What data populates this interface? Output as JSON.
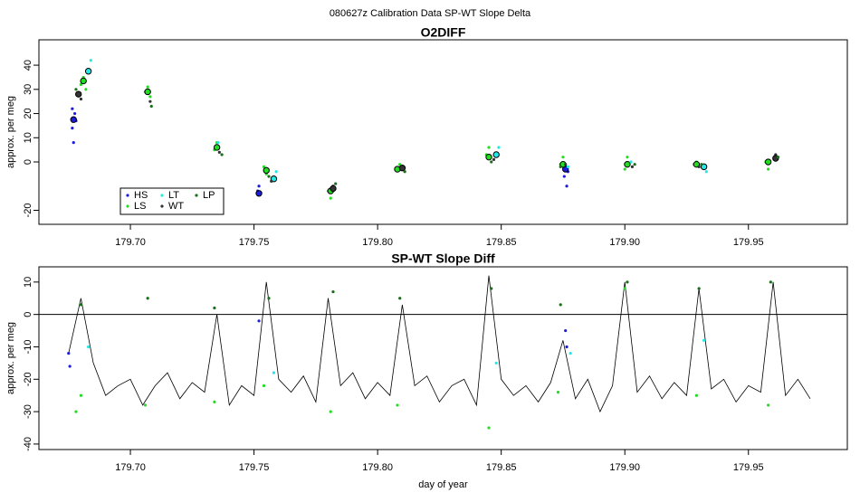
{
  "title": "080627z   Calibration Data SP-WT Slope Delta",
  "chart_data": [
    {
      "type": "scatter",
      "title": "O2DIFF",
      "ylabel": "approx. per meg",
      "xlim": [
        179.663,
        179.99
      ],
      "ylim": [
        -25.8,
        50.5
      ],
      "xticks": [
        {
          "value": 179.7,
          "label": "179.70"
        },
        179.75,
        {
          "value": 179.8,
          "label": "179.80"
        },
        179.85,
        {
          "value": 179.9,
          "label": "179.90"
        },
        179.95
      ],
      "yticks": [
        -20,
        0,
        10,
        20,
        30,
        40
      ],
      "legend": "bottomleft",
      "series": [
        {
          "name": "HS",
          "color": "#1c1cdc",
          "x": [
            179.6765,
            179.677,
            179.6775,
            179.678,
            179.6765,
            179.677,
            179.7515,
            179.752,
            179.8755,
            179.876,
            179.8765,
            179.877
          ],
          "values": [
            14,
            18,
            20,
            17,
            22,
            8,
            -12,
            -10,
            -6,
            -2,
            -10,
            -4
          ],
          "mean_x": [
            179.677,
            179.752,
            179.876
          ],
          "mean_values": [
            17.5,
            -13,
            -3
          ]
        },
        {
          "name": "LS",
          "color": "#22dd22",
          "x": [
            179.68,
            179.681,
            179.682,
            179.706,
            179.707,
            179.708,
            179.734,
            179.735,
            179.754,
            179.755,
            179.78,
            179.781,
            179.808,
            179.809,
            179.844,
            179.845,
            179.874,
            179.875,
            179.9,
            179.901,
            179.928,
            179.929,
            179.957,
            179.958
          ],
          "values": [
            32,
            35,
            30,
            29,
            31,
            27,
            5,
            8,
            -2,
            -5,
            -12,
            -15,
            -3,
            -1,
            3,
            6,
            -1,
            2,
            -3,
            2,
            -1,
            0,
            0,
            -3
          ],
          "mean_x": [
            179.681,
            179.707,
            179.735,
            179.755,
            179.781,
            179.808,
            179.845,
            179.875,
            179.901,
            179.929,
            179.958
          ],
          "mean_values": [
            33.5,
            29,
            6,
            -3.5,
            -12,
            -3,
            2,
            -1,
            -1,
            -1,
            0
          ]
        },
        {
          "name": "LT",
          "color": "#22e8e8",
          "x": [
            179.683,
            179.684,
            179.7355,
            179.758,
            179.759,
            179.8095,
            179.848,
            179.849,
            179.877,
            179.9025,
            179.932,
            179.933
          ],
          "values": [
            38,
            42,
            8,
            -7,
            -4,
            -2,
            3,
            6,
            -2,
            0,
            -2,
            -4
          ],
          "mean_x": [
            179.683,
            179.758,
            179.848,
            179.932
          ],
          "mean_values": [
            37.5,
            -7,
            3,
            -2
          ]
        },
        {
          "name": "WT",
          "color": "#333333",
          "x": [
            179.679,
            179.68,
            179.708,
            179.736,
            179.757,
            179.782,
            179.81,
            179.847,
            179.876,
            179.903,
            179.93,
            179.961
          ],
          "values": [
            28,
            26,
            25,
            4,
            -8,
            -10,
            -2,
            1,
            -1,
            -2,
            -2,
            3
          ],
          "mean_x": [
            179.679,
            179.782,
            179.81,
            179.961
          ],
          "mean_values": [
            28,
            -11,
            -2.5,
            1.5
          ]
        },
        {
          "name": "LP",
          "color": "#1a6e1a",
          "x": [
            179.678,
            179.7085,
            179.737,
            179.756,
            179.783,
            179.811,
            179.846,
            179.874,
            179.904,
            179.931,
            179.962
          ],
          "values": [
            30,
            23,
            3,
            -6,
            -9,
            -4,
            0,
            -2,
            -1,
            -1,
            2
          ]
        }
      ]
    },
    {
      "type": "line",
      "title": "SP-WT Slope Diff",
      "ylabel": "approx. per meg",
      "xlabel": "day of year",
      "xlim": [
        179.663,
        179.99
      ],
      "ylim": [
        -41.7,
        14.7
      ],
      "xticks": [
        {
          "value": 179.7,
          "label": "179.70"
        },
        179.75,
        {
          "value": 179.8,
          "label": "179.80"
        },
        179.85,
        {
          "value": 179.9,
          "label": "179.90"
        },
        179.95
      ],
      "yticks": [
        -40,
        -30,
        -20,
        -10,
        0,
        10
      ],
      "hline": 0,
      "series": [
        {
          "color": "#000000",
          "style": "line",
          "x": [
            179.675,
            179.68,
            179.685,
            179.69,
            179.695,
            179.7,
            179.705,
            179.71,
            179.715,
            179.72,
            179.725,
            179.73,
            179.735,
            179.74,
            179.745,
            179.75,
            179.755,
            179.76,
            179.765,
            179.77,
            179.775,
            179.78,
            179.785,
            179.79,
            179.795,
            179.8,
            179.805,
            179.81,
            179.815,
            179.82,
            179.825,
            179.83,
            179.835,
            179.84,
            179.845,
            179.85,
            179.855,
            179.86,
            179.865,
            179.87,
            179.875,
            179.88,
            179.885,
            179.89,
            179.895,
            179.9,
            179.905,
            179.91,
            179.915,
            179.92,
            179.925,
            179.93,
            179.935,
            179.94,
            179.945,
            179.95,
            179.955,
            179.96,
            179.965,
            179.97,
            179.975
          ],
          "values": [
            -12,
            5,
            -15,
            -25,
            -22,
            -20,
            -28,
            -22,
            -18,
            -26,
            -21,
            -24,
            0,
            -28,
            -22,
            -25,
            10,
            -20,
            -24,
            -19,
            -27,
            5,
            -22,
            -18,
            -26,
            -21,
            -25,
            3,
            -22,
            -19,
            -27,
            -22,
            -20,
            -28,
            12,
            -20,
            -25,
            -22,
            -27,
            -21,
            -8,
            -26,
            -20,
            -30,
            -22,
            10,
            -24,
            -19,
            -26,
            -21,
            -25,
            8,
            -23,
            -20,
            -27,
            -22,
            -24,
            10,
            -25,
            -20,
            -26
          ]
        },
        {
          "color": "#1c1cdc",
          "style": "points",
          "x": [
            179.675,
            179.6755,
            179.752,
            179.876,
            179.8765
          ],
          "values": [
            -12,
            -16,
            -2,
            -5,
            -10
          ]
        },
        {
          "color": "#22dd22",
          "style": "points",
          "x": [
            179.678,
            179.68,
            179.706,
            179.734,
            179.754,
            179.781,
            179.808,
            179.845,
            179.873,
            179.9,
            179.929,
            179.958
          ],
          "values": [
            -30,
            -25,
            -28,
            -27,
            -22,
            -30,
            -28,
            -35,
            -24,
            8,
            -25,
            -28
          ]
        },
        {
          "color": "#22e8e8",
          "style": "points",
          "x": [
            179.683,
            179.758,
            179.848,
            179.878,
            179.932
          ],
          "values": [
            -10,
            -18,
            -15,
            -12,
            -8
          ]
        },
        {
          "color": "#1a6e1a",
          "style": "points",
          "x": [
            179.68,
            179.707,
            179.734,
            179.756,
            179.782,
            179.809,
            179.846,
            179.874,
            179.901,
            179.93,
            179.959
          ],
          "values": [
            3,
            5,
            2,
            5,
            7,
            5,
            8,
            3,
            10,
            8,
            10
          ]
        }
      ]
    }
  ]
}
